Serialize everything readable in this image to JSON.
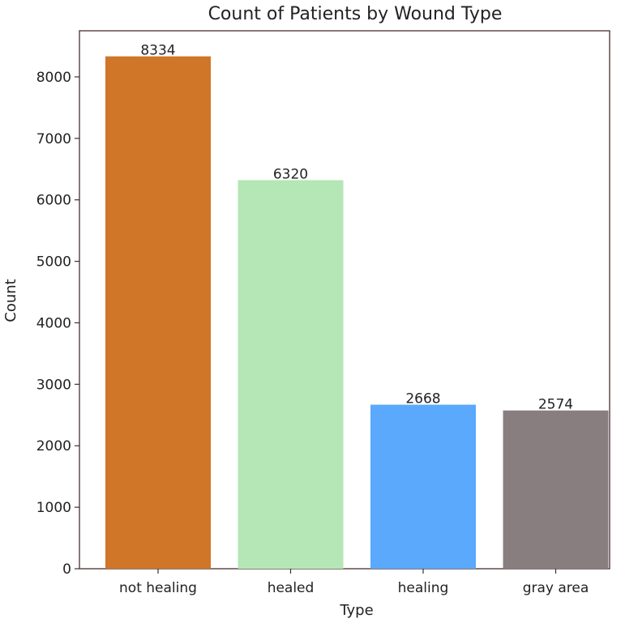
{
  "chart_data": {
    "type": "bar",
    "title": "Count of Patients by Wound Type",
    "xlabel": "Type",
    "ylabel": "Count",
    "categories": [
      "not healing",
      "healed",
      "healing",
      "gray area"
    ],
    "values": [
      8334,
      6320,
      2668,
      2574
    ],
    "data_labels": [
      "8334",
      "6320",
      "2668",
      "2574"
    ],
    "colors": [
      "#cf7628",
      "#b5e6b6",
      "#5aa9fd",
      "#887e80"
    ],
    "ylim": [
      0,
      8750
    ],
    "yticks": [
      0,
      1000,
      2000,
      3000,
      4000,
      5000,
      6000,
      7000,
      8000
    ],
    "grid": false,
    "legend": "none"
  }
}
